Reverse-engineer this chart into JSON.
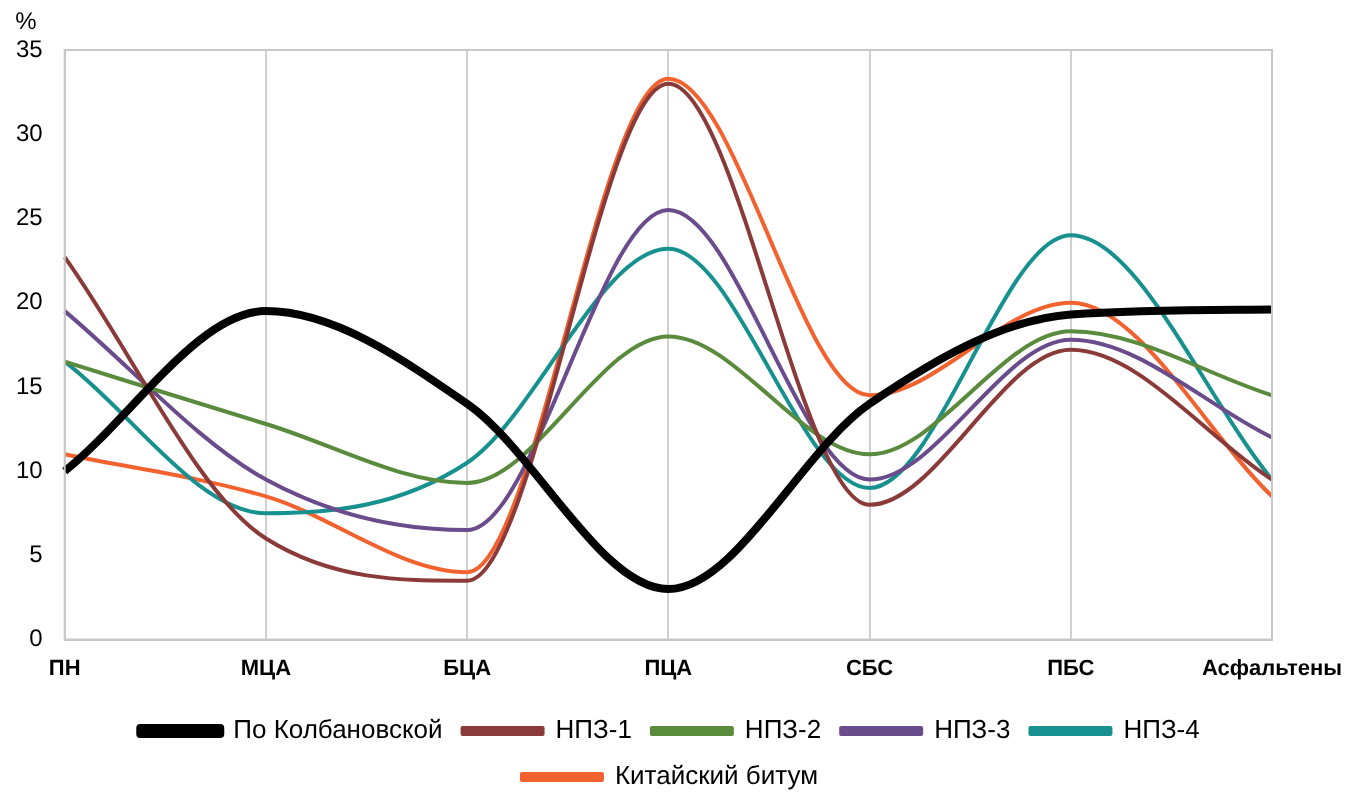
{
  "chart_data": {
    "type": "line",
    "ylabel": "%",
    "categories": [
      "ПН",
      "МЦА",
      "БЦА",
      "ПЦА",
      "СБС",
      "ПБС",
      "Асфальтены"
    ],
    "series": [
      {
        "name": "По Колбановской",
        "color": "#000000",
        "values": [
          10,
          19.5,
          14,
          3,
          14,
          19.3,
          19.6
        ]
      },
      {
        "name": "НПЗ-1",
        "color": "#8b3a3a",
        "values": [
          22.7,
          6,
          3.5,
          33,
          8,
          17.2,
          9.5
        ]
      },
      {
        "name": "НПЗ-2",
        "color": "#5a8a3c",
        "values": [
          16.5,
          12.8,
          9.3,
          18,
          11,
          18.3,
          14.5
        ]
      },
      {
        "name": "НПЗ-3",
        "color": "#6a4c8c",
        "values": [
          19.5,
          9.5,
          6.5,
          25.5,
          9.5,
          17.8,
          12
        ]
      },
      {
        "name": "НПЗ-4",
        "color": "#17918f",
        "values": [
          16.5,
          7.5,
          10.5,
          23.2,
          9,
          24,
          9.5
        ]
      },
      {
        "name": "Китайский битум",
        "color": "#f2622e",
        "values": [
          11,
          8.5,
          4,
          33.3,
          14.5,
          20,
          8.5
        ]
      }
    ],
    "ylim": [
      0,
      35
    ],
    "yticks": [
      0,
      5,
      10,
      15,
      20,
      25,
      30,
      35
    ],
    "grid": "x",
    "legend": "bottom",
    "marker": "none",
    "line_style": "solid"
  }
}
